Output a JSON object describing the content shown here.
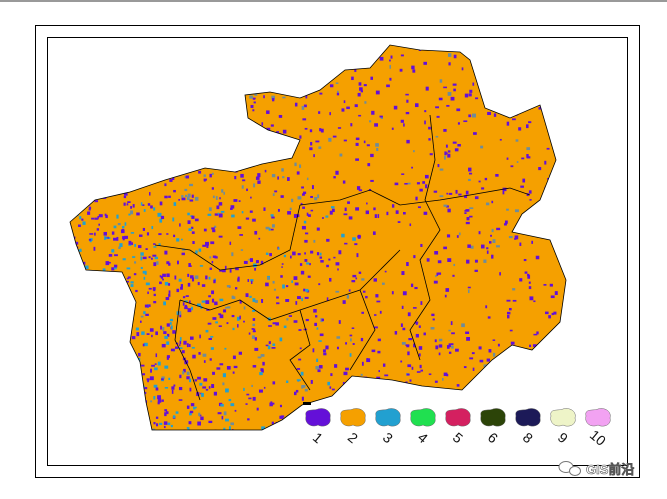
{
  "legend": {
    "items": [
      {
        "label": "1",
        "color": "#6410d8"
      },
      {
        "label": "2",
        "color": "#f5a000"
      },
      {
        "label": "3",
        "color": "#22a0d0"
      },
      {
        "label": "4",
        "color": "#20e050"
      },
      {
        "label": "5",
        "color": "#d42060"
      },
      {
        "label": "6",
        "color": "#2c4408"
      },
      {
        "label": "8",
        "color": "#1c1a58"
      },
      {
        "label": "9",
        "color": "#eef4c8"
      },
      {
        "label": "10",
        "color": "#f2a2f2"
      }
    ]
  },
  "watermark": {
    "text": "GIS前沿"
  }
}
